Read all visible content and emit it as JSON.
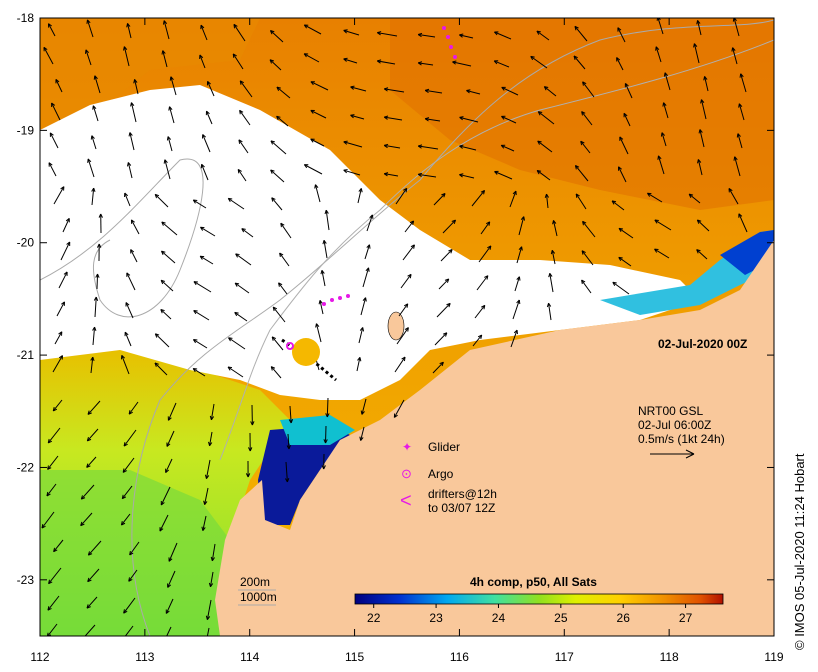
{
  "map": {
    "date_label": "02-Jul-2020 00Z",
    "credit": "© IMOS 05-Jul-2020 11:24 Hobart",
    "lon_ticks": [
      "112",
      "113",
      "114",
      "115",
      "116",
      "117",
      "118",
      "119"
    ],
    "lat_ticks": [
      "-18",
      "-19",
      "-20",
      "-21",
      "-22",
      "-23"
    ]
  },
  "current_legend": {
    "line1": "NRT00 GSL",
    "line2": "02-Jul 06:00Z",
    "line3": "0.5m/s (1kt 24h)"
  },
  "symbol_legend": {
    "glider": "Glider",
    "argo": "Argo",
    "drifters_line1": "drifters@12h",
    "drifters_line2": "to 03/07 12Z",
    "glider_symbol": "✦",
    "argo_symbol": "⊙",
    "drifter_symbol": "<"
  },
  "bathymetry": {
    "contour1": "200m",
    "contour2": "1000m"
  },
  "colorbar": {
    "title": "4h comp, p50, All Sats",
    "ticks": [
      "22",
      "23",
      "24",
      "25",
      "26",
      "27"
    ],
    "range": [
      21.7,
      27.6
    ]
  },
  "colors": {
    "land": "#f9c89b",
    "cloud": "#ffffff",
    "marker": "#e619e6",
    "sst_stops": [
      "#00007f",
      "#0022c8",
      "#00a8f0",
      "#50e0a0",
      "#90e020",
      "#d8f000",
      "#ffd000",
      "#f0a000",
      "#e07000",
      "#b01000"
    ]
  }
}
